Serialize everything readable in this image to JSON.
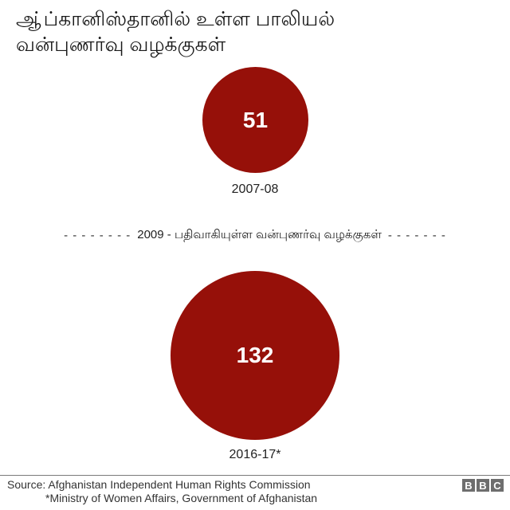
{
  "title": {
    "line1": "ஆ்ப்கானிஸ்தானில் உள்ள பாலியல்",
    "line2": "வன்புணர்வு வழக்குகள்"
  },
  "colors": {
    "circle_fill": "#961009",
    "text": "#222222",
    "footer_rule": "#7a7a7a",
    "logo_block": "#6e6e6e"
  },
  "divider": {
    "dashes_left": "- - - - - - - -",
    "text": "2009 - பதிவாகியுள்ள வன்புணர்வு வழக்குகள்",
    "dashes_right": "- - - - - - -"
  },
  "footer": {
    "source_line1": "Source: Afghanistan Independent Human Rights Commission",
    "source_line2": "*Ministry of Women Affairs, Government of Afghanistan",
    "logo_letters": [
      "B",
      "B",
      "C"
    ]
  },
  "chart_data": {
    "type": "bubble",
    "title": "ஆ்ப்கானிஸ்தானில் உள்ள பாலியல் வன்புணர்வு வழக்குகள்",
    "categories": [
      "2007-08",
      "2016-17*"
    ],
    "values": [
      51,
      132
    ],
    "value_labels": [
      "51",
      "132"
    ],
    "annotation": "2009 - பதிவாகியுள்ள வன்புணர்வு வழக்குகள்",
    "color": "#961009",
    "legend": "none",
    "grid": false,
    "source": "Source: Afghanistan Independent Human Rights Commission; *Ministry of Women Affairs, Government of Afghanistan"
  }
}
